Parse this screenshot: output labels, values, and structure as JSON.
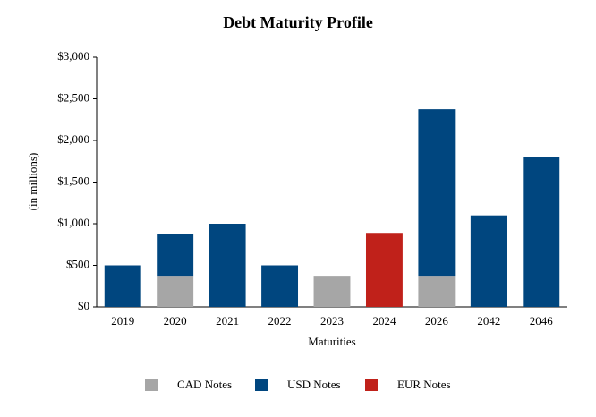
{
  "chart_data": {
    "type": "stacked_bar",
    "title": "Debt Maturity Profile",
    "x_label": "Maturities",
    "y_label": "(in millions)",
    "categories": [
      "2019",
      "2020",
      "2021",
      "2022",
      "2023",
      "2024",
      "2026",
      "2042",
      "2046"
    ],
    "series": [
      {
        "name": "CAD Notes",
        "color": "#a6a6a6",
        "values": [
          null,
          375,
          null,
          null,
          375,
          null,
          375,
          null,
          null
        ]
      },
      {
        "name": "USD Notes",
        "color": "#00467f",
        "values": [
          500,
          500,
          1000,
          500,
          null,
          null,
          2000,
          1100,
          1800
        ]
      },
      {
        "name": "EUR Notes",
        "color": "#c0211a",
        "values": [
          null,
          null,
          null,
          null,
          null,
          890,
          null,
          null,
          null
        ]
      }
    ],
    "ylim": [
      0,
      3000
    ],
    "yticks": [
      {
        "value": 0,
        "label": "$0"
      },
      {
        "value": 500,
        "label": "$500"
      },
      {
        "value": 1000,
        "label": "$1,000"
      },
      {
        "value": 1500,
        "label": "$1,500"
      },
      {
        "value": 2000,
        "label": "$2,000"
      },
      {
        "value": 2500,
        "label": "$2,500"
      },
      {
        "value": 3000,
        "label": "$3,000"
      }
    ],
    "grid": false,
    "legend": "bottom"
  }
}
